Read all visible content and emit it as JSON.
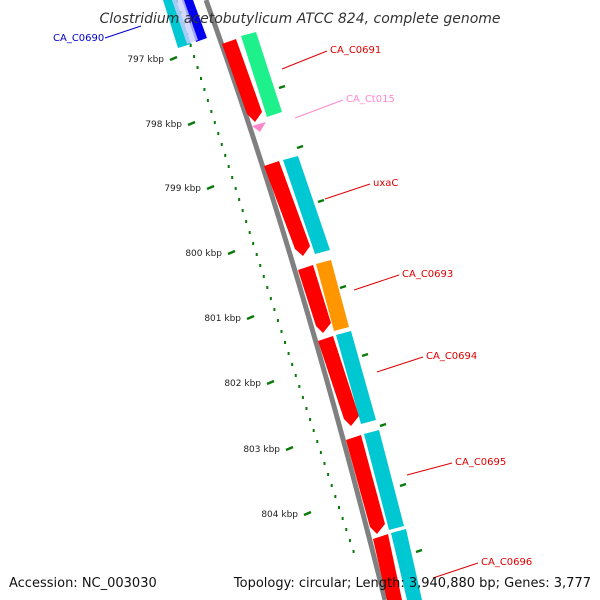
{
  "title": "Clostridium acetobutylicum ATCC 824, complete genome",
  "accession": "Accession: NC_003030",
  "topology": "Topology: circular; Length: 3,940,880 bp; Genes: 3,777",
  "colors": {
    "backbone": "#808080",
    "red": "#ff0000",
    "cyan": "#00c8d2",
    "green": "#1ef08c",
    "orange": "#ff9600",
    "pink": "#ff88cc",
    "blue": "#0000ee",
    "tick": "#0a7a0a"
  },
  "ticks": [
    {
      "label": "797 kbp"
    },
    {
      "label": "798 kbp"
    },
    {
      "label": "799 kbp"
    },
    {
      "label": "800 kbp"
    },
    {
      "label": "801 kbp"
    },
    {
      "label": "802 kbp"
    },
    {
      "label": "803 kbp"
    },
    {
      "label": "804 kbp"
    }
  ],
  "genes": [
    {
      "label": "CA_C0690",
      "color": "#0000cc"
    },
    {
      "label": "CA_C0691",
      "color": "#dd0000"
    },
    {
      "label": "CA_Ct015",
      "color": "#ff88cc"
    },
    {
      "label": "uxaC",
      "color": "#dd0000"
    },
    {
      "label": "CA_C0693",
      "color": "#dd0000"
    },
    {
      "label": "CA_C0694",
      "color": "#dd0000"
    },
    {
      "label": "CA_C0695",
      "color": "#dd0000"
    },
    {
      "label": "CA_C0696",
      "color": "#dd0000"
    }
  ]
}
